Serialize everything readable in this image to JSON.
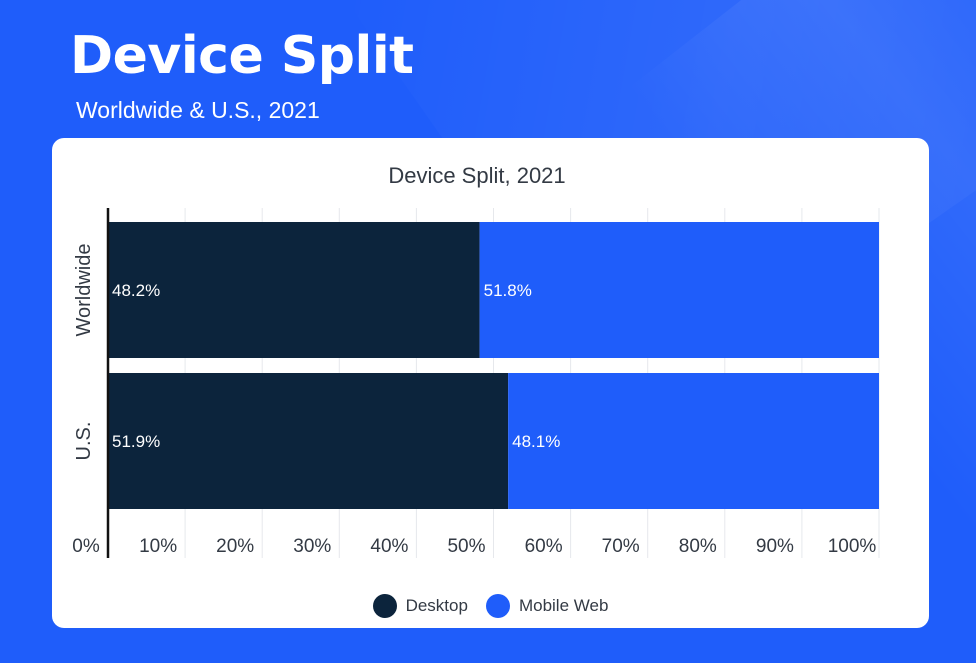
{
  "header": {
    "title": "Device Split",
    "subtitle": "Worldwide & U.S., 2021"
  },
  "colors": {
    "background": "#1f5dfa",
    "desktop": "#0c243c",
    "mobile_web": "#1f5dfa"
  },
  "chart_data": {
    "type": "bar",
    "orientation": "horizontal",
    "stacked": true,
    "title": "Device Split,  2021",
    "categories": [
      "Worldwide",
      "U.S."
    ],
    "series": [
      {
        "name": "Desktop",
        "values": [
          48.2,
          51.9
        ],
        "labels": [
          "48.2%",
          "51.9%"
        ]
      },
      {
        "name": "Mobile Web",
        "values": [
          51.8,
          48.1
        ],
        "labels": [
          "51.8%",
          "48.1%"
        ]
      }
    ],
    "xlim": [
      0,
      100
    ],
    "x_ticks": [
      "0%",
      "10%",
      "20%",
      "30%",
      "40%",
      "50%",
      "60%",
      "70%",
      "80%",
      "90%",
      "100%"
    ],
    "grid": true,
    "legend_position": "bottom-center"
  }
}
